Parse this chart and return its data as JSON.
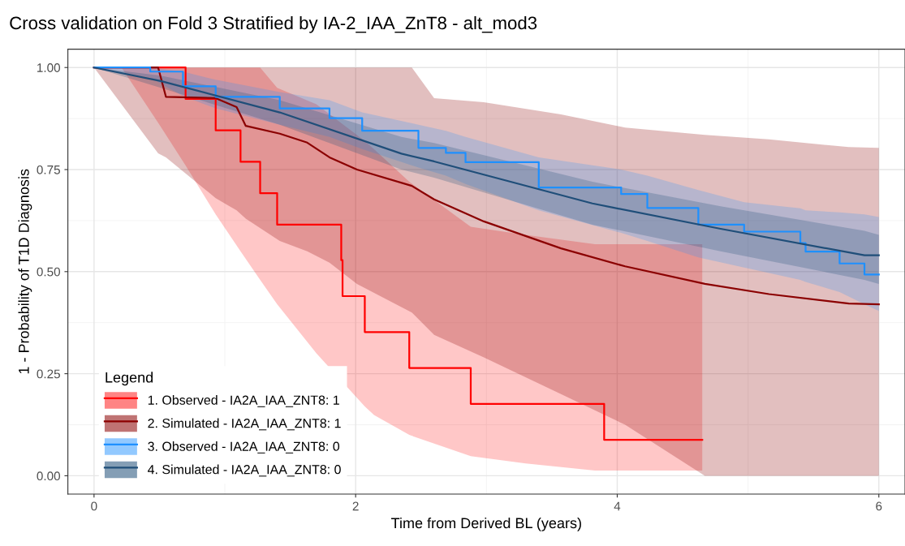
{
  "chart_data": {
    "type": "line",
    "title": "Cross validation on Fold 3 Stratified by IA-2_IAA_ZnT8 - alt_mod3",
    "xlabel": "Time from Derived BL (years)",
    "ylabel": "1 - Probability of T1D Diagnosis",
    "legend_title": "Legend",
    "legend": "bottom left",
    "grid": true,
    "xlim": [
      -0.2,
      6.2
    ],
    "ylim": [
      -0.045,
      1.045
    ],
    "xticks": [
      0,
      2,
      4,
      6
    ],
    "yticks": [
      {
        "value": 0,
        "label": "0.00"
      },
      {
        "value": 0.25,
        "label": "0.25"
      },
      {
        "value": 0.5,
        "label": "0.50"
      },
      {
        "value": 0.75,
        "label": "0.75"
      },
      {
        "value": 1,
        "label": "1.00"
      }
    ],
    "series": [
      {
        "name": "1. Observed - IA2A_IAA_ZNT8: 1",
        "type": "step",
        "color": "#ff0000",
        "x": [
          0,
          0.21,
          0.5,
          0.7,
          0.93,
          1.12,
          1.27,
          1.4,
          1.7,
          1.89,
          1.9,
          2.07,
          2.14,
          2.41,
          2.88,
          3.3,
          3.83,
          3.9,
          4.65
        ],
        "values": [
          1,
          1,
          1,
          0.923,
          0.846,
          0.769,
          0.692,
          0.615,
          0.615,
          0.528,
          0.44,
          0.352,
          0.352,
          0.264,
          0.176,
          0.176,
          0.176,
          0.088,
          0.088
        ],
        "upper": [
          1,
          1,
          1,
          1,
          1,
          1,
          1,
          0.95,
          0.91,
          null,
          null,
          0.82,
          0.8,
          0.72,
          0.61,
          0.59,
          0.567,
          0.567,
          0.567
        ],
        "lower": [
          1,
          1,
          0.86,
          0.76,
          0.64,
          0.55,
          0.48,
          0.42,
          0.3,
          null,
          null,
          0.17,
          0.149,
          0.1,
          0.048,
          0.03,
          0.013,
          0.013,
          0.013
        ]
      },
      {
        "name": "2. Simulated - IA2A_IAA_ZNT8: 1",
        "color": "#8b0000",
        "x": [
          0,
          0.49,
          0.55,
          0.93,
          1.09,
          1.16,
          1.42,
          1.63,
          1.8,
          2.01,
          2.43,
          2.6,
          2.98,
          3.57,
          4.06,
          4.67,
          5.16,
          5.77,
          6
        ],
        "values": [
          1,
          1,
          0.928,
          0.925,
          0.903,
          0.857,
          0.838,
          0.816,
          0.78,
          0.75,
          0.71,
          0.677,
          0.623,
          0.557,
          0.513,
          0.47,
          0.445,
          0.422,
          0.42
        ],
        "upper": [
          1,
          1,
          1,
          1,
          1,
          1,
          1,
          1,
          1,
          1,
          1,
          0.925,
          0.915,
          0.885,
          0.853,
          0.835,
          0.824,
          0.805,
          0.803
        ],
        "lower": [
          1,
          0.79,
          0.78,
          0.68,
          0.65,
          0.63,
          0.575,
          0.55,
          0.522,
          0.47,
          0.4,
          0.345,
          0.29,
          0.2,
          0.125,
          0,
          0,
          0,
          0
        ]
      },
      {
        "name": "3. Observed - IA2A_IAA_ZNT8: 0",
        "type": "step",
        "color": "#1e90ff",
        "x": [
          0,
          0.43,
          0.68,
          0.93,
          1.42,
          1.8,
          2.05,
          2.48,
          2.69,
          2.84,
          3.4,
          4.03,
          4.23,
          4.62,
          4.97,
          5.4,
          5.44,
          5.7,
          5.89,
          6
        ],
        "values": [
          1,
          0.99,
          0.954,
          0.928,
          0.9,
          0.876,
          0.845,
          0.803,
          0.791,
          0.768,
          0.706,
          0.69,
          0.656,
          0.615,
          0.598,
          0.57,
          0.549,
          0.52,
          0.493,
          0.493
        ],
        "upper": [
          1,
          1,
          0.99,
          0.97,
          0.94,
          0.92,
          0.89,
          0.86,
          0.845,
          0.83,
          0.78,
          0.75,
          0.735,
          0.7,
          0.67,
          0.655,
          0.65,
          0.645,
          0.64,
          0.634
        ],
        "lower": [
          1,
          0.975,
          0.93,
          0.9,
          0.86,
          0.83,
          0.8,
          0.755,
          0.735,
          0.715,
          0.65,
          0.595,
          0.575,
          0.535,
          0.51,
          0.48,
          0.475,
          0.45,
          0.42,
          0.404
        ]
      },
      {
        "name": "4. Simulated - IA2A_IAA_ZNT8: 0",
        "color": "#1f4e79",
        "x": [
          0,
          0.51,
          1.42,
          2.35,
          2.6,
          3.81,
          4.79,
          5.89,
          6
        ],
        "values": [
          1,
          0.967,
          0.89,
          0.789,
          0.77,
          0.667,
          0.605,
          0.54,
          0.54
        ],
        "upper": [
          1,
          0.98,
          0.92,
          0.83,
          0.815,
          0.72,
          0.66,
          0.6,
          0.59
        ],
        "lower": [
          1,
          0.95,
          0.86,
          0.75,
          0.73,
          0.615,
          0.55,
          0.48,
          0.47
        ]
      }
    ]
  }
}
